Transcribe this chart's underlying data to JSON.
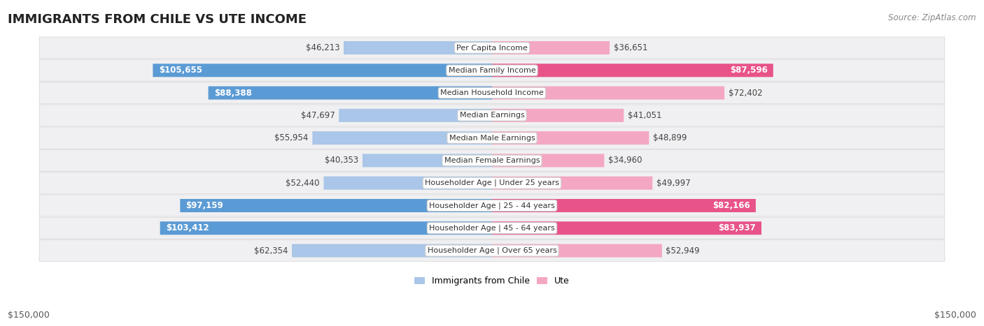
{
  "title": "IMMIGRANTS FROM CHILE VS UTE INCOME",
  "source": "Source: ZipAtlas.com",
  "categories": [
    "Per Capita Income",
    "Median Family Income",
    "Median Household Income",
    "Median Earnings",
    "Median Male Earnings",
    "Median Female Earnings",
    "Householder Age | Under 25 years",
    "Householder Age | 25 - 44 years",
    "Householder Age | 45 - 64 years",
    "Householder Age | Over 65 years"
  ],
  "left_values": [
    46213,
    105655,
    88388,
    47697,
    55954,
    40353,
    52440,
    97159,
    103412,
    62354
  ],
  "right_values": [
    36651,
    87596,
    72402,
    41051,
    48899,
    34960,
    49997,
    82166,
    83937,
    52949
  ],
  "left_label": "Immigrants from Chile",
  "right_label": "Ute",
  "left_color_light": "#aac6e8",
  "left_color_dark": "#5b9bd5",
  "right_color_light": "#f4a7c3",
  "right_color_dark": "#e8538a",
  "text_threshold": 75000,
  "max_value": 150000,
  "bg_color": "#ffffff",
  "row_color_odd": "#f5f5f5",
  "row_color_even": "#ebebeb",
  "footer_left": "$150,000",
  "footer_right": "$150,000"
}
